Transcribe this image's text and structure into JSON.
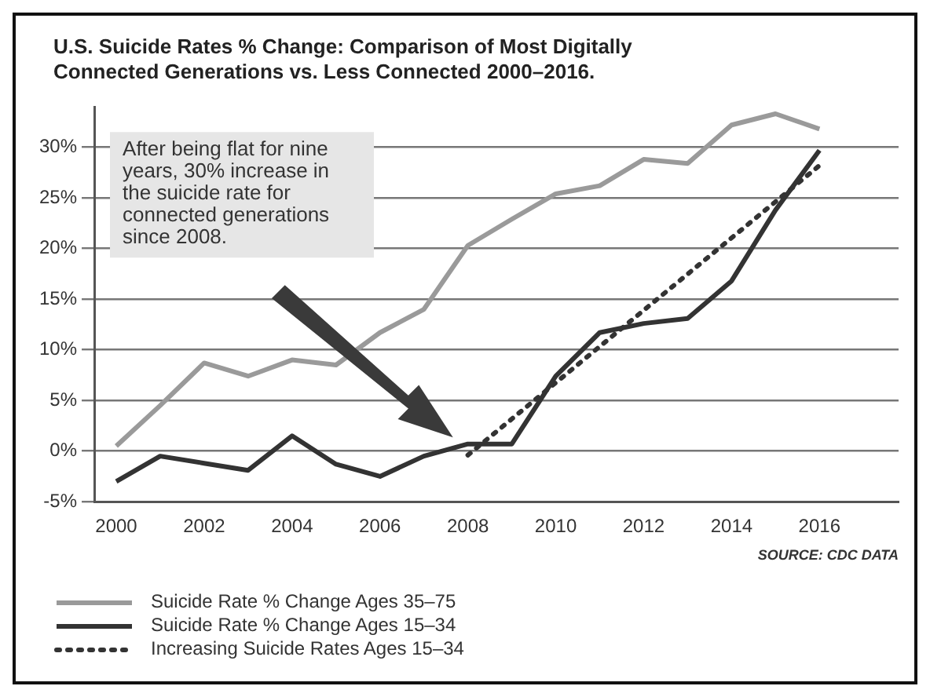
{
  "chart_data": {
    "type": "line",
    "title": "U.S. Suicide Rates % Change: Comparison of Most Digitally Connected Generations vs. Less Connected 2000–2016.",
    "annotations": [
      "After being flat for nine years, 30% increase in the suicide rate for connected generations since 2008.",
      "SOURCE: CDC DATA"
    ],
    "x": [
      2000,
      2001,
      2002,
      2003,
      2004,
      2005,
      2006,
      2007,
      2008,
      2009,
      2010,
      2011,
      2012,
      2013,
      2014,
      2015,
      2016
    ],
    "series": [
      {
        "name": "Suicide Rate % Change Ages 35–75",
        "color": "#9a9a9a",
        "line_style": "solid",
        "values": [
          0.5,
          4.5,
          8.7,
          7.4,
          9,
          8.5,
          11.7,
          14,
          20.3,
          22.9,
          25.4,
          26.2,
          28.8,
          28.4,
          32.2,
          33.3,
          31.8
        ]
      },
      {
        "name": "Suicide Rate % Change Ages 15–34",
        "color": "#333333",
        "line_style": "solid",
        "values": [
          -3,
          -0.5,
          -1.2,
          -1.9,
          1.5,
          -1.3,
          -2.5,
          -0.5,
          0.7,
          0.7,
          7.4,
          11.7,
          12.6,
          13.1,
          16.8,
          23.8,
          29.7
        ]
      },
      {
        "name": "Increasing Suicide Rates Ages 15–34",
        "color": "#333333",
        "line_style": "dotted",
        "x": [
          2008,
          2016
        ],
        "values": [
          -0.4,
          28.2
        ]
      }
    ],
    "xlim": [
      1999.5,
      2017.8
    ],
    "xticks": [
      2000,
      2002,
      2004,
      2006,
      2008,
      2010,
      2012,
      2014,
      2016
    ],
    "ylim": [
      -5,
      34
    ],
    "yticks": [
      {
        "value": -5,
        "label": "-5%"
      },
      {
        "value": 0,
        "label": "0%"
      },
      {
        "value": 5,
        "label": "5%"
      },
      {
        "value": 10,
        "label": "10%"
      },
      {
        "value": 15,
        "label": "15%"
      },
      {
        "value": 20,
        "label": "20%"
      },
      {
        "value": 25,
        "label": "25%"
      },
      {
        "value": 30,
        "label": "30%"
      }
    ],
    "grid": "y",
    "legend": "bottom",
    "marker": "none"
  }
}
